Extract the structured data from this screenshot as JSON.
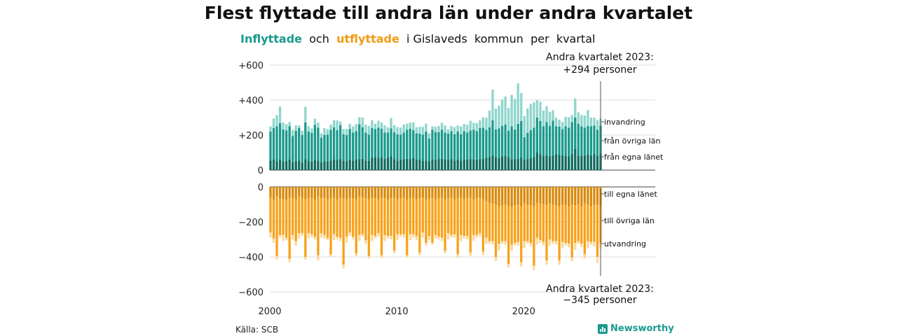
{
  "title": "Flest flyttade till andra län under andra kvartalet",
  "subtitle": {
    "inflyttade": "Inflyttade",
    "och": "och",
    "utflyttade": "utflyttade",
    "rest": "i Gislaveds  kommun  per  kvartal"
  },
  "annotations": {
    "top_line1": "Andra kvartalet 2023:",
    "top_line2": "+294 personer",
    "bottom_line1": "Andra kvartalet 2023:",
    "bottom_line2": "−345 personer"
  },
  "source": "Källa: SCB",
  "logo": "Newsworthy",
  "colors": {
    "in_own_county": "#0f6b5f",
    "in_other_counties": "#1a9a8c",
    "in_immigration": "#8fd6cd",
    "out_own_county": "#d98a0b",
    "out_other_counties": "#f7a21b",
    "out_emigration": "#fbd9a0",
    "grid": "#dddddd",
    "axis": "#444444"
  },
  "chart_data": {
    "type": "bar",
    "stacked": true,
    "diverging": true,
    "title": "Flest flyttade till andra län under andra kvartalet",
    "x_ticks": [
      "2000",
      "2010",
      "2020"
    ],
    "y_ticks_top": [
      "+600",
      "+400",
      "+200",
      "0"
    ],
    "y_ticks_top_values": [
      600,
      400,
      200,
      0
    ],
    "y_ticks_bottom": [
      "0",
      "−200",
      "−400",
      "−600"
    ],
    "y_ticks_bottom_values": [
      0,
      -200,
      -400,
      -600
    ],
    "ylim_top": [
      0,
      600
    ],
    "ylim_bottom": [
      -600,
      0
    ],
    "start_year": 2000,
    "quarters_per_year": 4,
    "series_labels_in": [
      "invandring",
      "från övriga län",
      "från egna länet"
    ],
    "series_labels_out": [
      "till egna länet",
      "till övriga län",
      "utvandring"
    ],
    "inflow": {
      "own_county": [
        55,
        60,
        50,
        58,
        48,
        52,
        60,
        45,
        50,
        55,
        40,
        62,
        50,
        48,
        58,
        52,
        45,
        50,
        48,
        55,
        60,
        58,
        62,
        55,
        50,
        60,
        55,
        58,
        62,
        65,
        55,
        52,
        70,
        75,
        68,
        72,
        65,
        70,
        78,
        62,
        55,
        58,
        60,
        65,
        62,
        68,
        60,
        58,
        52,
        55,
        50,
        60,
        58,
        62,
        65,
        60,
        58,
        62,
        55,
        60,
        55,
        58,
        60,
        62,
        60,
        58,
        65,
        62,
        70,
        75,
        85,
        72,
        68,
        78,
        80,
        75,
        60,
        62,
        65,
        70,
        58,
        62,
        68,
        72,
        100,
        90,
        80,
        85,
        78,
        82,
        90,
        88,
        85,
        80,
        78,
        90,
        120,
        85,
        80,
        82,
        88,
        85,
        90,
        80,
        95
      ],
      "other_counties": [
        165,
        180,
        200,
        210,
        185,
        175,
        190,
        150,
        175,
        185,
        160,
        210,
        170,
        165,
        200,
        190,
        140,
        150,
        155,
        175,
        185,
        170,
        195,
        150,
        150,
        175,
        160,
        165,
        200,
        180,
        160,
        150,
        170,
        160,
        175,
        165,
        150,
        145,
        160,
        155,
        150,
        145,
        155,
        165,
        175,
        160,
        150,
        150,
        150,
        165,
        130,
        170,
        160,
        155,
        165,
        155,
        150,
        160,
        150,
        160,
        150,
        165,
        155,
        165,
        170,
        165,
        175,
        180,
        160,
        170,
        200,
        160,
        170,
        175,
        180,
        150,
        190,
        170,
        200,
        210,
        130,
        150,
        160,
        170,
        200,
        190,
        170,
        190,
        175,
        200,
        160,
        160,
        150,
        170,
        165,
        185,
        180,
        180,
        170,
        160,
        165,
        165,
        165,
        150,
        160
      ],
      "immigration": [
        30,
        55,
        65,
        95,
        40,
        35,
        25,
        35,
        30,
        15,
        25,
        90,
        30,
        25,
        35,
        30,
        25,
        40,
        30,
        30,
        40,
        55,
        20,
        30,
        35,
        30,
        35,
        40,
        40,
        55,
        45,
        50,
        45,
        30,
        40,
        35,
        40,
        30,
        60,
        40,
        40,
        40,
        45,
        35,
        35,
        45,
        35,
        40,
        45,
        45,
        30,
        20,
        30,
        35,
        40,
        40,
        25,
        30,
        40,
        35,
        45,
        40,
        45,
        55,
        40,
        45,
        45,
        60,
        70,
        95,
        175,
        120,
        130,
        150,
        160,
        130,
        180,
        175,
        230,
        160,
        120,
        140,
        150,
        145,
        100,
        110,
        90,
        90,
        80,
        60,
        50,
        40,
        40,
        55,
        60,
        40,
        110,
        65,
        65,
        70,
        90,
        50,
        45,
        55,
        40
      ]
    },
    "outflow": {
      "own_county": [
        -60,
        -70,
        -55,
        -65,
        -70,
        -75,
        -60,
        -65,
        -70,
        -55,
        -60,
        -70,
        -65,
        -60,
        -70,
        -55,
        -65,
        -60,
        -70,
        -65,
        -60,
        -70,
        -60,
        -65,
        -70,
        -60,
        -65,
        -70,
        -55,
        -60,
        -65,
        -70,
        -60,
        -65,
        -70,
        -60,
        -65,
        -70,
        -65,
        -60,
        -70,
        -65,
        -60,
        -70,
        -65,
        -60,
        -70,
        -65,
        -60,
        -70,
        -65,
        -60,
        -70,
        -65,
        -60,
        -70,
        -65,
        -60,
        -70,
        -65,
        -60,
        -70,
        -65,
        -60,
        -70,
        -65,
        -60,
        -70,
        -80,
        -90,
        -95,
        -100,
        -110,
        -105,
        -100,
        -110,
        -115,
        -105,
        -100,
        -110,
        -95,
        -100,
        -105,
        -110,
        -90,
        -95,
        -100,
        -105,
        -95,
        -100,
        -105,
        -110,
        -100,
        -105,
        -110,
        -100,
        -105,
        -100,
        -110,
        -95,
        -100,
        -110,
        -105,
        -100,
        -110
      ],
      "other_counties": [
        -200,
        -225,
        -340,
        -210,
        -205,
        -215,
        -350,
        -210,
        -240,
        -210,
        -205,
        -330,
        -200,
        -210,
        -215,
        -335,
        -200,
        -215,
        -220,
        -320,
        -210,
        -215,
        -230,
        -380,
        -215,
        -200,
        -220,
        -310,
        -220,
        -210,
        -240,
        -325,
        -215,
        -215,
        -195,
        -330,
        -210,
        -210,
        -215,
        -305,
        -200,
        -205,
        -210,
        -320,
        -205,
        -210,
        -210,
        -310,
        -200,
        -250,
        -215,
        -260,
        -205,
        -220,
        -230,
        -295,
        -200,
        -215,
        -200,
        -320,
        -215,
        -210,
        -215,
        -315,
        -205,
        -210,
        -205,
        -300,
        -210,
        -220,
        -215,
        -300,
        -215,
        -205,
        -210,
        -330,
        -215,
        -215,
        -215,
        -320,
        -215,
        -210,
        -215,
        -340,
        -200,
        -210,
        -215,
        -315,
        -205,
        -210,
        -205,
        -310,
        -215,
        -215,
        -215,
        -305,
        -215,
        -210,
        -215,
        -290,
        -210,
        -205,
        -210,
        -300,
        -210
      ],
      "emigration": [
        -30,
        -25,
        -20,
        -15,
        -35,
        -15,
        -20,
        -25,
        -25,
        -30,
        -15,
        -15,
        -30,
        -20,
        -15,
        -30,
        -25,
        -20,
        -15,
        -15,
        -35,
        -15,
        -20,
        -20,
        -35,
        -20,
        -15,
        -15,
        -35,
        -15,
        -20,
        -15,
        -35,
        -15,
        -20,
        -15,
        -35,
        -15,
        -20,
        -15,
        -35,
        -15,
        -20,
        -15,
        -35,
        -20,
        -25,
        -15,
        -30,
        -15,
        -25,
        -10,
        -20,
        -15,
        -20,
        -15,
        -35,
        -15,
        -20,
        -20,
        -35,
        -15,
        -20,
        -20,
        -35,
        -15,
        -20,
        -20,
        -35,
        -15,
        -20,
        -25,
        -40,
        -15,
        -20,
        -20,
        -35,
        -15,
        -20,
        -25,
        -40,
        -15,
        -20,
        -25,
        -40,
        -15,
        -20,
        -25,
        -35,
        -15,
        -20,
        -25,
        -35,
        -15,
        -20,
        -20,
        -40,
        -15,
        -20,
        -25,
        -40,
        -15,
        -25,
        -35,
        -35
      ]
    }
  }
}
